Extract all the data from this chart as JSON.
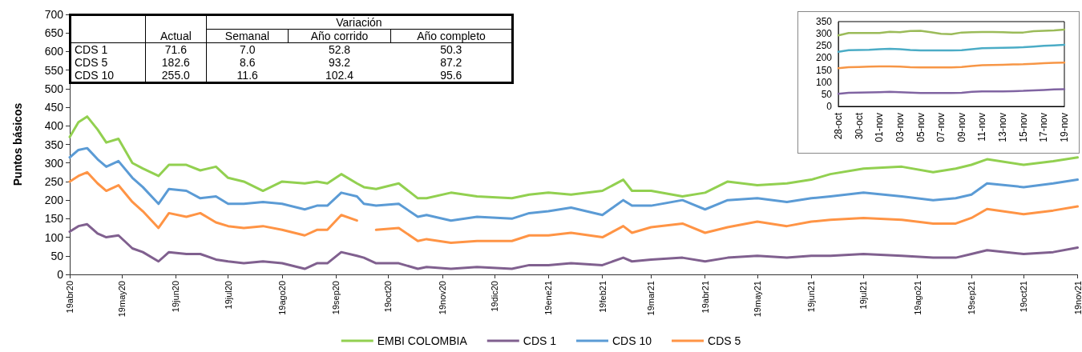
{
  "chart_data": [
    {
      "type": "line",
      "ylabel": "Puntos básicos",
      "legend": "bottom",
      "grid": false,
      "marker": "none",
      "line_style": "solid",
      "x": [
        "2020-04-19",
        "2020-04-24",
        "2020-04-29",
        "2020-05-05",
        "2020-05-10",
        "2020-05-17",
        "2020-05-25",
        "2020-05-31",
        "2020-06-09",
        "2020-06-15",
        "2020-06-25",
        "2020-07-03",
        "2020-07-12",
        "2020-07-19",
        "2020-07-28",
        "2020-08-08",
        "2020-08-19",
        "2020-09-01",
        "2020-09-08",
        "2020-09-14",
        "2020-09-22",
        "2020-10-01",
        "2020-10-05",
        "2020-10-12",
        "2020-10-25",
        "2020-11-05",
        "2020-11-10",
        "2020-11-24",
        "2020-12-09",
        "2020-12-29",
        "2021-01-08",
        "2021-01-19",
        "2021-02-01",
        "2021-02-19",
        "2021-03-03",
        "2021-03-08",
        "2021-03-19",
        "2021-04-06",
        "2021-04-19",
        "2021-05-02",
        "2021-05-19",
        "2021-06-05",
        "2021-06-19",
        "2021-06-30",
        "2021-07-19",
        "2021-08-10",
        "2021-08-28",
        "2021-09-10",
        "2021-09-19",
        "2021-09-28",
        "2021-10-19",
        "2021-11-05",
        "2021-11-19"
      ],
      "xlim": [
        "2020-04-19",
        "2021-11-19"
      ],
      "xticks": [
        {
          "value": "2020-04-19",
          "label": "19abr20"
        },
        {
          "value": "2020-05-19",
          "label": "19may20"
        },
        {
          "value": "2020-06-19",
          "label": "19jun20"
        },
        {
          "value": "2020-07-19",
          "label": "19jul20"
        },
        {
          "value": "2020-08-19",
          "label": "19ago20"
        },
        {
          "value": "2020-09-19",
          "label": "19sep20"
        },
        {
          "value": "2020-10-19",
          "label": "19oct20"
        },
        {
          "value": "2020-11-19",
          "label": "19nov20"
        },
        {
          "value": "2020-12-19",
          "label": "19dic20"
        },
        {
          "value": "2021-01-19",
          "label": "19ene21"
        },
        {
          "value": "2021-02-19",
          "label": "19feb21"
        },
        {
          "value": "2021-03-19",
          "label": "19mar21"
        },
        {
          "value": "2021-04-19",
          "label": "19abr21"
        },
        {
          "value": "2021-05-19",
          "label": "19may21"
        },
        {
          "value": "2021-06-19",
          "label": "19jun21"
        },
        {
          "value": "2021-07-19",
          "label": "19jul21"
        },
        {
          "value": "2021-08-19",
          "label": "19ago21"
        },
        {
          "value": "2021-09-19",
          "label": "19sep21"
        },
        {
          "value": "2021-10-19",
          "label": "19oct21"
        },
        {
          "value": "2021-11-19",
          "label": "19nov21"
        }
      ],
      "ylim": [
        0,
        700
      ],
      "yticks": [
        0,
        50,
        100,
        150,
        200,
        250,
        300,
        350,
        400,
        450,
        500,
        550,
        600,
        650,
        700
      ],
      "series": [
        {
          "name": "EMBI COLOMBIA",
          "color": "#92d050",
          "values": [
            370,
            410,
            425,
            390,
            355,
            365,
            300,
            285,
            265,
            295,
            295,
            280,
            290,
            260,
            250,
            225,
            250,
            245,
            250,
            245,
            270,
            245,
            235,
            230,
            245,
            205,
            205,
            220,
            210,
            205,
            215,
            220,
            215,
            225,
            255,
            225,
            225,
            210,
            220,
            250,
            240,
            245,
            255,
            270,
            285,
            290,
            275,
            285,
            295,
            310,
            295,
            305,
            315
          ]
        },
        {
          "name": "CDS 1",
          "color": "#80608f",
          "values": [
            115,
            130,
            135,
            110,
            100,
            105,
            70,
            60,
            35,
            60,
            55,
            55,
            40,
            35,
            30,
            35,
            30,
            15,
            30,
            30,
            60,
            50,
            45,
            30,
            30,
            15,
            20,
            15,
            20,
            15,
            25,
            25,
            30,
            25,
            45,
            35,
            40,
            45,
            35,
            45,
            50,
            45,
            50,
            50,
            55,
            50,
            45,
            45,
            55,
            65,
            55,
            60,
            72
          ]
        },
        {
          "name": "CDS 10",
          "color": "#5b9bd5",
          "values": [
            315,
            335,
            340,
            310,
            290,
            305,
            260,
            235,
            190,
            230,
            225,
            205,
            210,
            190,
            190,
            195,
            190,
            175,
            185,
            185,
            220,
            210,
            190,
            185,
            190,
            155,
            160,
            145,
            155,
            150,
            165,
            170,
            180,
            160,
            200,
            185,
            185,
            200,
            175,
            200,
            205,
            195,
            205,
            210,
            220,
            210,
            200,
            205,
            215,
            245,
            235,
            245,
            255
          ]
        },
        {
          "name": "CDS 5",
          "color": "#ff9445",
          "values": [
            250,
            265,
            275,
            245,
            225,
            240,
            195,
            170,
            125,
            165,
            155,
            165,
            140,
            130,
            125,
            130,
            120,
            105,
            120,
            120,
            160,
            145,
            null,
            120,
            125,
            90,
            95,
            85,
            90,
            90,
            105,
            105,
            112,
            100,
            130,
            112,
            127,
            137,
            112,
            127,
            142,
            130,
            142,
            147,
            152,
            147,
            137,
            137,
            152,
            176,
            162,
            172,
            183
          ]
        }
      ]
    },
    {
      "type": "line",
      "grid": false,
      "marker": "none",
      "categories": [
        "28-oct",
        null,
        "30-oct",
        null,
        "01-nov",
        null,
        "03-nov",
        null,
        "05-nov",
        null,
        "07-nov",
        null,
        "09-nov",
        null,
        "11-nov",
        null,
        "13-nov",
        null,
        "15-nov",
        null,
        "17-nov",
        null,
        "19-nov"
      ],
      "ylim": [
        0,
        350
      ],
      "yticks": [
        0,
        50,
        100,
        150,
        200,
        250,
        300,
        350
      ],
      "series": [
        {
          "color": "#9bbb59",
          "values": [
            293,
            303,
            303,
            303,
            303,
            308,
            306,
            311,
            312,
            306,
            300,
            298,
            305,
            306,
            307,
            307,
            306,
            305,
            305,
            310,
            312,
            314,
            317
          ]
        },
        {
          "color": "#4bacc6",
          "values": [
            225,
            232,
            233,
            234,
            236,
            238,
            236,
            233,
            231,
            231,
            231,
            231,
            232,
            236,
            240,
            241,
            242,
            243,
            244,
            247,
            250,
            252,
            254
          ]
        },
        {
          "color": "#f79646",
          "values": [
            158,
            162,
            163,
            164,
            165,
            165,
            164,
            162,
            161,
            161,
            161,
            161,
            163,
            167,
            170,
            171,
            172,
            173,
            174,
            176,
            178,
            180,
            181
          ]
        },
        {
          "color": "#8064a2",
          "values": [
            52,
            56,
            57,
            58,
            59,
            60,
            59,
            57,
            55,
            55,
            55,
            55,
            56,
            60,
            62,
            62,
            62,
            63,
            64,
            66,
            68,
            70,
            71
          ]
        }
      ]
    },
    {
      "type": "other",
      "title": "Variación",
      "categories": [
        "CDS 1",
        "CDS 5",
        "CDS 10"
      ],
      "series": [
        {
          "name": "Actual",
          "values": [
            71.6,
            182.6,
            255.0
          ],
          "value_labels": [
            "71.6",
            "182.6",
            "255.0"
          ]
        },
        {
          "name": "Semanal",
          "values": [
            7.0,
            8.6,
            11.6
          ],
          "value_labels": [
            "7.0",
            "8.6",
            "11.6"
          ]
        },
        {
          "name": "Año corrido",
          "values": [
            52.8,
            93.2,
            102.4
          ],
          "value_labels": [
            "52.8",
            "93.2",
            "102.4"
          ]
        },
        {
          "name": "Año completo",
          "values": [
            50.3,
            87.2,
            95.6
          ],
          "value_labels": [
            "50.3",
            "87.2",
            "95.6"
          ]
        }
      ]
    }
  ]
}
